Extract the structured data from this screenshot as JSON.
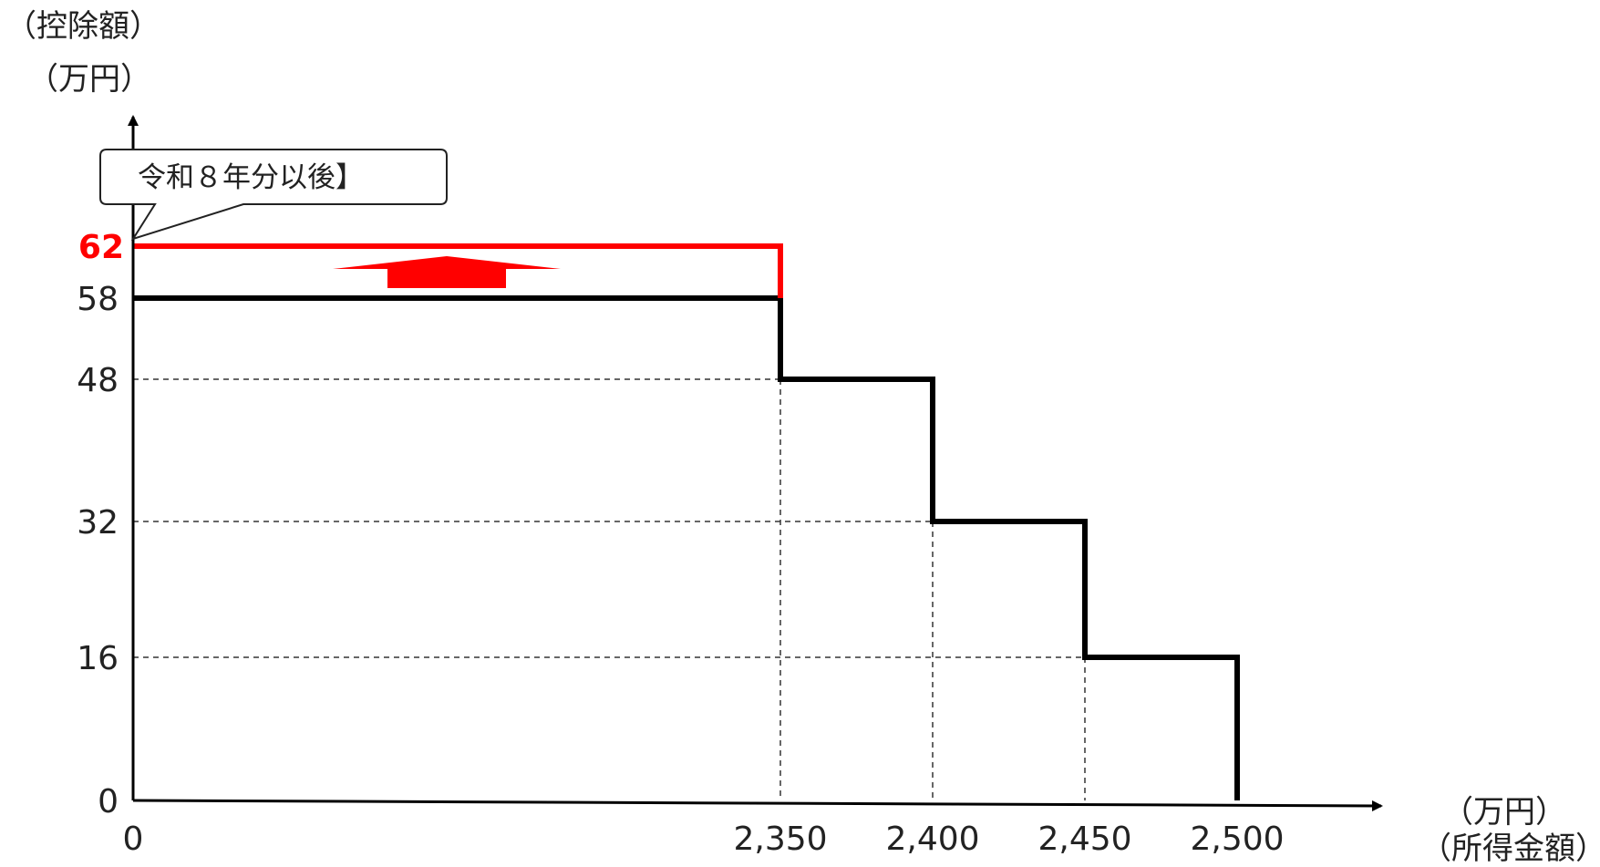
{
  "chart_data": {
    "type": "line",
    "title": "",
    "y_unit": "（万円）",
    "y_label": "（控除額）",
    "x_unit": "（万円）",
    "x_label": "（所得金額）",
    "x_ticks": [
      "0",
      "2,350",
      "2,400",
      "2,450",
      "2,500"
    ],
    "y_ticks": [
      "0",
      "16",
      "32",
      "48",
      "58"
    ],
    "highlight_tick": "62",
    "callout": "令和８年分以後】",
    "series": [
      {
        "values": [
          {
            "x": 0,
            "y": 58
          },
          {
            "x": 2350,
            "y": 58
          },
          {
            "x": 2350,
            "y": 48
          },
          {
            "x": 2400,
            "y": 48
          },
          {
            "x": 2400,
            "y": 32
          },
          {
            "x": 2450,
            "y": 32
          },
          {
            "x": 2450,
            "y": 16
          },
          {
            "x": 2500,
            "y": 16
          },
          {
            "x": 2500,
            "y": 0
          }
        ],
        "color": "#000000"
      },
      {
        "values": [
          {
            "x": 0,
            "y": 62
          },
          {
            "x": 2350,
            "y": 62
          },
          {
            "x": 2350,
            "y": 58
          }
        ],
        "color": "#ff0000"
      }
    ],
    "grid": "dashed reference lines at step points",
    "colors": {
      "axis": "#000000",
      "highlight": "#ff0000"
    }
  }
}
